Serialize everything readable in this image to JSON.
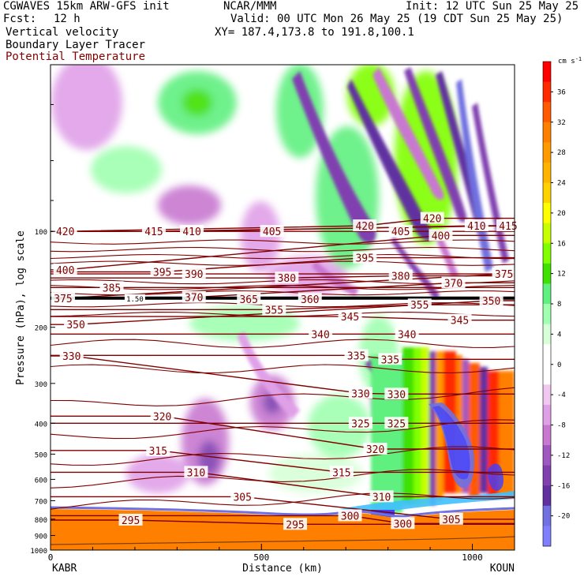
{
  "header": {
    "model": "CGWAVES 15km ARW-GFS init",
    "center": "NCAR/MMM",
    "init": "Init: 12 UTC Sun 25 May 25",
    "fcst_label": "Fcst:",
    "fcst_value": "12 h",
    "valid": "Valid: 00 UTC Mon 26 May 25 (19 CDT Sun 25 May 25)",
    "field1": "Vertical velocity",
    "field2": "Boundary Layer Tracer",
    "field3": "Potential Temperature",
    "xy": "XY= 187.4,173.8 to 191.8,100.1"
  },
  "colors": {
    "theta": "#800000",
    "pbl": "#000000"
  },
  "chart_data": {
    "type": "heatmap",
    "title": "",
    "xlabel": "Distance (km)",
    "ylabel": "Pressure (hPa), log scale",
    "xlim": [
      0,
      1100
    ],
    "ylim": [
      1000,
      30
    ],
    "yscale": "log",
    "x_ticks": [
      0,
      500,
      1000
    ],
    "y_ticks": [
      100,
      200,
      300,
      400,
      500,
      600,
      700,
      800,
      900,
      1000
    ],
    "x_end_labels": {
      "left": "KABR",
      "right": "KOUN"
    },
    "colorbar": {
      "unit": "cm s",
      "unit_exp": "-1",
      "ticks": [
        36,
        32,
        28,
        24,
        20,
        16,
        12,
        8,
        4,
        0,
        -4,
        -8,
        -12,
        -16,
        -20
      ],
      "colors": [
        "#ff0000",
        "#ff2a00",
        "#ff5a00",
        "#ff8000",
        "#ff9a00",
        "#ffb400",
        "#ffd200",
        "#ffff00",
        "#c8ff00",
        "#80ff00",
        "#40e000",
        "#60f080",
        "#a0ffb0",
        "#d8ffd8",
        "#ffffff",
        "#ffffff",
        "#f0c8f0",
        "#e0a0e8",
        "#c878d0",
        "#a058c0",
        "#8040b0",
        "#6030a0",
        "#7070e0",
        "#8080ff"
      ]
    },
    "theta_labels": [
      {
        "x": 35,
        "p": 100,
        "t": "420"
      },
      {
        "x": 245,
        "p": 100,
        "t": "415"
      },
      {
        "x": 335,
        "p": 100,
        "t": "410"
      },
      {
        "x": 525,
        "p": 100,
        "t": "405"
      },
      {
        "x": 745,
        "p": 96,
        "t": "420"
      },
      {
        "x": 830,
        "p": 100,
        "t": "405"
      },
      {
        "x": 905,
        "p": 91,
        "t": "420"
      },
      {
        "x": 925,
        "p": 103,
        "t": "400"
      },
      {
        "x": 1010,
        "p": 96,
        "t": "410"
      },
      {
        "x": 1085,
        "p": 96,
        "t": "415"
      },
      {
        "x": 35,
        "p": 132,
        "t": "400"
      },
      {
        "x": 265,
        "p": 134,
        "t": "395"
      },
      {
        "x": 340,
        "p": 136,
        "t": "390"
      },
      {
        "x": 560,
        "p": 140,
        "t": "380"
      },
      {
        "x": 745,
        "p": 121,
        "t": "395"
      },
      {
        "x": 830,
        "p": 138,
        "t": "380"
      },
      {
        "x": 955,
        "p": 145,
        "t": "370"
      },
      {
        "x": 1075,
        "p": 136,
        "t": "375"
      },
      {
        "x": 30,
        "p": 162,
        "t": "375"
      },
      {
        "x": 145,
        "p": 150,
        "t": "385"
      },
      {
        "x": 340,
        "p": 161,
        "t": "370"
      },
      {
        "x": 470,
        "p": 163,
        "t": "365"
      },
      {
        "x": 530,
        "p": 176,
        "t": "355"
      },
      {
        "x": 615,
        "p": 163,
        "t": "360"
      },
      {
        "x": 710,
        "p": 185,
        "t": "345"
      },
      {
        "x": 875,
        "p": 170,
        "t": "355"
      },
      {
        "x": 970,
        "p": 190,
        "t": "345"
      },
      {
        "x": 1045,
        "p": 165,
        "t": "350"
      },
      {
        "x": 60,
        "p": 196,
        "t": "350"
      },
      {
        "x": 640,
        "p": 210,
        "t": "340"
      },
      {
        "x": 845,
        "p": 210,
        "t": "340"
      },
      {
        "x": 50,
        "p": 246,
        "t": "330"
      },
      {
        "x": 725,
        "p": 245,
        "t": "335"
      },
      {
        "x": 805,
        "p": 252,
        "t": "335"
      },
      {
        "x": 735,
        "p": 322,
        "t": "330"
      },
      {
        "x": 820,
        "p": 324,
        "t": "330"
      },
      {
        "x": 265,
        "p": 380,
        "t": "320"
      },
      {
        "x": 735,
        "p": 400,
        "t": "325"
      },
      {
        "x": 820,
        "p": 400,
        "t": "325"
      },
      {
        "x": 255,
        "p": 487,
        "t": "315"
      },
      {
        "x": 770,
        "p": 482,
        "t": "320"
      },
      {
        "x": 345,
        "p": 570,
        "t": "310"
      },
      {
        "x": 690,
        "p": 570,
        "t": "315"
      },
      {
        "x": 455,
        "p": 680,
        "t": "305"
      },
      {
        "x": 785,
        "p": 680,
        "t": "310"
      },
      {
        "x": 190,
        "p": 805,
        "t": "295"
      },
      {
        "x": 580,
        "p": 830,
        "t": "295"
      },
      {
        "x": 710,
        "p": 780,
        "t": "300"
      },
      {
        "x": 835,
        "p": 825,
        "t": "300"
      },
      {
        "x": 950,
        "p": 800,
        "t": "305"
      }
    ],
    "pbl_label": {
      "x": 200,
      "p": 162,
      "t": "1.50"
    }
  }
}
